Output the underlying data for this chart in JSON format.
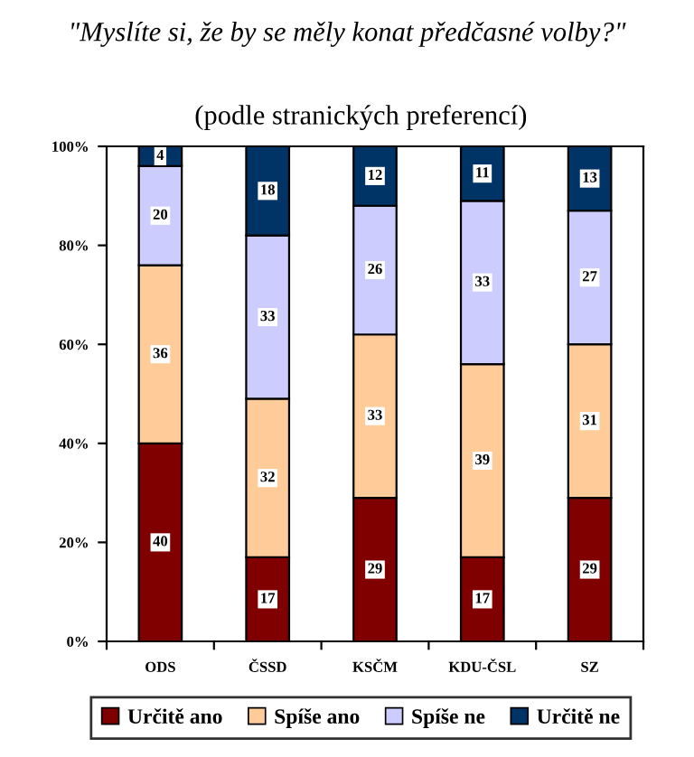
{
  "chart_data": {
    "type": "bar",
    "title": "\"Myslíte si, že by se měly konat předčasné volby?\"",
    "subtitle": "(podle stranických preferencí)",
    "categories": [
      "ODS",
      "ČSSD",
      "KSČM",
      "KDU-ČSL",
      "SZ"
    ],
    "stacked": true,
    "ylim": [
      0,
      100
    ],
    "yticks": [
      {
        "value": 0,
        "label": "0%"
      },
      {
        "value": 20,
        "label": "20%"
      },
      {
        "value": 40,
        "label": "40%"
      },
      {
        "value": 60,
        "label": "60%"
      },
      {
        "value": 80,
        "label": "80%"
      },
      {
        "value": 100,
        "label": "100%"
      }
    ],
    "grid": false,
    "legend": "bottom",
    "data_labels": true,
    "series": [
      {
        "name": "Určitě ano",
        "color": "#800000",
        "values": [
          40,
          17,
          29,
          17,
          29
        ]
      },
      {
        "name": "Spíše ano",
        "color": "#ffcc99",
        "values": [
          36,
          32,
          33,
          39,
          31
        ]
      },
      {
        "name": "Spíše ne",
        "color": "#ccccff",
        "values": [
          20,
          33,
          26,
          33,
          27
        ]
      },
      {
        "name": "Určitě ne",
        "color": "#003366",
        "values": [
          4,
          18,
          12,
          11,
          13
        ]
      }
    ]
  }
}
